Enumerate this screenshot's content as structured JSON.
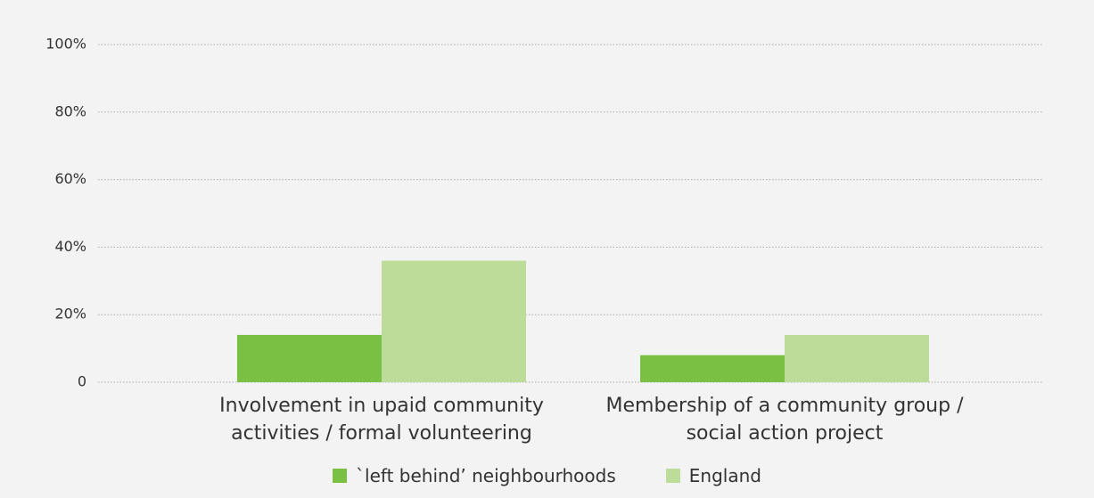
{
  "chart_data": {
    "type": "bar",
    "categories": [
      "Involvement in upaid community activities / formal volunteering",
      "Membership of a community group / social action project"
    ],
    "series": [
      {
        "name": "`left behind’ neighbourhoods",
        "color": "#7ac143",
        "values": [
          14,
          8
        ]
      },
      {
        "name": "England",
        "color": "#bddc9a",
        "values": [
          36,
          14
        ]
      }
    ],
    "ylim": [
      0,
      100
    ],
    "yticks": [
      0,
      {
        "value": 20,
        "label": "20%"
      },
      {
        "value": 40,
        "label": "40%"
      },
      {
        "value": 60,
        "label": "60%"
      },
      {
        "value": 80,
        "label": "80%"
      },
      {
        "value": 100,
        "label": "100%"
      }
    ],
    "grid": true
  }
}
